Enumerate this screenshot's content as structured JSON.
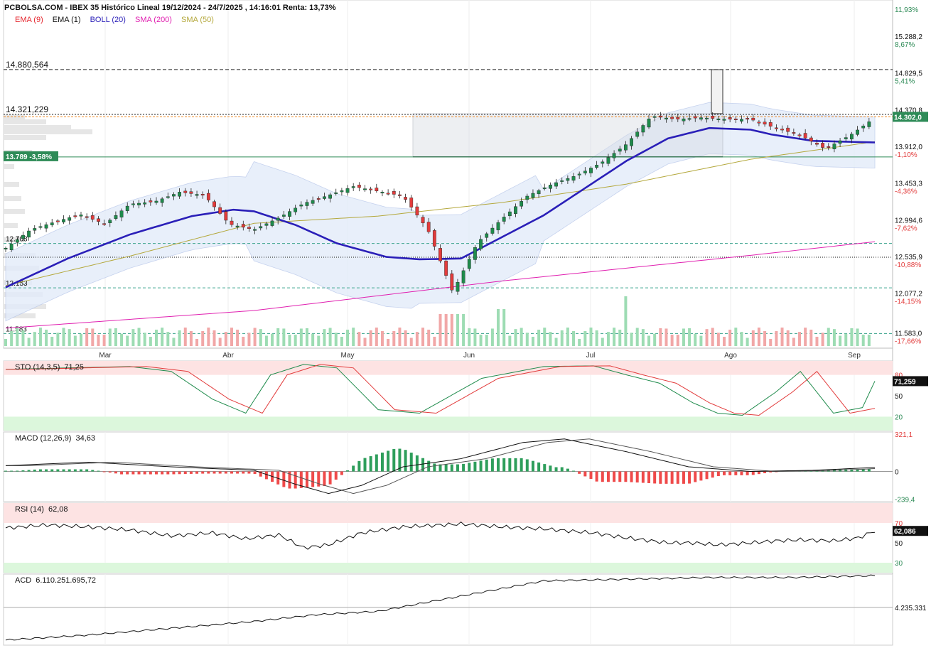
{
  "header": {
    "title": "PCBOLSA.COM - IBEX 35 Histórico Lineal 19/12/2024 - 24/7/2025 , 14:16:01 Renta: 13,73%"
  },
  "legend": [
    {
      "label": "EMA (9)",
      "color": "#e5262e"
    },
    {
      "label": "EMA (1)",
      "color": "#111111"
    },
    {
      "label": "BOLL (20)",
      "color": "#2a1fb8"
    },
    {
      "label": "SMA (200)",
      "color": "#e020b0"
    },
    {
      "label": "SMA (50)",
      "color": "#b4a83c"
    }
  ],
  "chart_data": [
    {
      "type": "line",
      "title": "IBEX 35",
      "xlabel": "",
      "ylabel": "",
      "ylim": [
        11400,
        15750
      ],
      "x_ticks": [
        "Mar",
        "Abr",
        "May",
        "Jun",
        "Jul",
        "Ago",
        "Sep"
      ],
      "y_ticks": [
        {
          "value": "15.288,2",
          "pct": "8,67%"
        },
        {
          "value": "14.829,5",
          "pct": "5,41%"
        },
        {
          "value": "14.370,8",
          "pct": ""
        },
        {
          "value": "13.912,0",
          "pct": "-1,10%"
        },
        {
          "value": "13.453,3",
          "pct": "-4,36%"
        },
        {
          "value": "12.994,6",
          "pct": "-7,62%"
        },
        {
          "value": "12.535,9",
          "pct": "-10,88%"
        },
        {
          "value": "12.077,2",
          "pct": "-14,15%"
        },
        {
          "value": "11.583,0",
          "pct": "-17,66%"
        }
      ],
      "top_pct_label": "11,93%",
      "last_price_label": "14.302,0",
      "levels": [
        {
          "label": "14.880,564",
          "value": 14880.564
        },
        {
          "label": "14.321,229",
          "value": 14321.229
        },
        {
          "label": "13.789 -3,58%",
          "value": 13789
        },
        {
          "label": "12.708",
          "value": 12708
        },
        {
          "label": "12.153",
          "value": 12153
        },
        {
          "label": "11.583",
          "value": 11583
        }
      ],
      "series": [
        {
          "name": "IBEX 35 close",
          "x": [
            0,
            6,
            12,
            18,
            24,
            30,
            36,
            42,
            48,
            54,
            60,
            66,
            72,
            78,
            84,
            90,
            96,
            102,
            108,
            114,
            120,
            126,
            132,
            138,
            144,
            150,
            156,
            162,
            168,
            174,
            180,
            186,
            192,
            198,
            204,
            210
          ],
          "values": [
            12650,
            12880,
            12980,
            13070,
            12950,
            13200,
            13230,
            13350,
            13310,
            12950,
            12880,
            13030,
            13210,
            13310,
            13420,
            13360,
            13300,
            12880,
            12100,
            12720,
            13020,
            13300,
            13450,
            13560,
            13720,
            13950,
            14300,
            14260,
            14280,
            14260,
            14260,
            14150,
            14060,
            13890,
            14060,
            14280
          ]
        },
        {
          "name": "BOLL (20) mid",
          "x": [
            0,
            15,
            30,
            45,
            55,
            60,
            70,
            80,
            92,
            100,
            110,
            130,
            150,
            160,
            170,
            180,
            185,
            195,
            210
          ],
          "values": [
            12160,
            12520,
            12820,
            13050,
            13130,
            13110,
            12940,
            12710,
            12540,
            12510,
            12520,
            13060,
            13740,
            14020,
            14150,
            14130,
            14070,
            13990,
            13970
          ]
        },
        {
          "name": "SMA (50)",
          "x": [
            0,
            30,
            60,
            90,
            120,
            150,
            180,
            210
          ],
          "values": [
            12180,
            12550,
            12960,
            13050,
            13220,
            13450,
            13760,
            13980
          ]
        },
        {
          "name": "SMA (200)",
          "x": [
            0,
            60,
            120,
            180,
            210
          ],
          "values": [
            11650,
            11870,
            12240,
            12560,
            12730
          ]
        }
      ]
    },
    {
      "type": "line",
      "title": "STO (14,3,5)",
      "value_label": "71,25",
      "last_label": "71,259",
      "ylim": [
        0,
        100
      ],
      "y_ticks": [
        "80",
        "50",
        "20"
      ],
      "series": [
        {
          "name": "%K",
          "x": [
            0,
            15,
            30,
            40,
            50,
            58,
            64,
            72,
            80,
            90,
            100,
            115,
            130,
            142,
            150,
            158,
            166,
            172,
            178,
            186,
            192,
            200,
            207,
            210
          ],
          "values": [
            88,
            90,
            92,
            85,
            45,
            25,
            80,
            95,
            90,
            30,
            25,
            75,
            92,
            93,
            80,
            68,
            40,
            25,
            22,
            55,
            85,
            25,
            33,
            71
          ]
        }
      ]
    },
    {
      "type": "line",
      "title": "MACD (12,26,9)",
      "value_label": "34,63",
      "ylim": [
        -260,
        340
      ],
      "y_ticks": [
        "321,1",
        "0",
        "-239,4"
      ],
      "series": [
        {
          "name": "MACD",
          "x": [
            0,
            20,
            40,
            60,
            70,
            78,
            86,
            96,
            110,
            125,
            135,
            150,
            165,
            180,
            195,
            210
          ],
          "values": [
            50,
            80,
            40,
            10,
            -110,
            -190,
            -120,
            40,
            110,
            250,
            280,
            170,
            40,
            0,
            10,
            34
          ]
        }
      ]
    },
    {
      "type": "line",
      "title": "RSI (14)",
      "value_label": "62,08",
      "last_label": "62,086",
      "ylim": [
        20,
        90
      ],
      "y_ticks": [
        "70",
        "50",
        "30"
      ],
      "series": [
        {
          "name": "RSI",
          "x": [
            0,
            10,
            20,
            30,
            40,
            50,
            58,
            66,
            72,
            78,
            86,
            96,
            110,
            120,
            130,
            142,
            150,
            160,
            166,
            172,
            180,
            186,
            192,
            200,
            206,
            210
          ],
          "values": [
            65,
            68,
            66,
            63,
            57,
            60,
            54,
            58,
            45,
            48,
            60,
            66,
            69,
            66,
            64,
            60,
            55,
            50,
            50,
            48,
            50,
            52,
            53,
            52,
            55,
            62
          ]
        }
      ]
    },
    {
      "type": "line",
      "title": "ACD",
      "value_label": "6.110.251.695,72",
      "y_ticks": [
        "4.235.331"
      ],
      "series": [
        {
          "name": "ACD",
          "x": [
            0,
            20,
            40,
            60,
            75,
            90,
            110,
            130,
            150,
            170,
            190,
            210
          ],
          "values": [
            2.3,
            2.6,
            3.0,
            3.4,
            3.8,
            4.0,
            4.9,
            5.8,
            5.9,
            6.0,
            6.0,
            6.11
          ]
        }
      ]
    }
  ]
}
